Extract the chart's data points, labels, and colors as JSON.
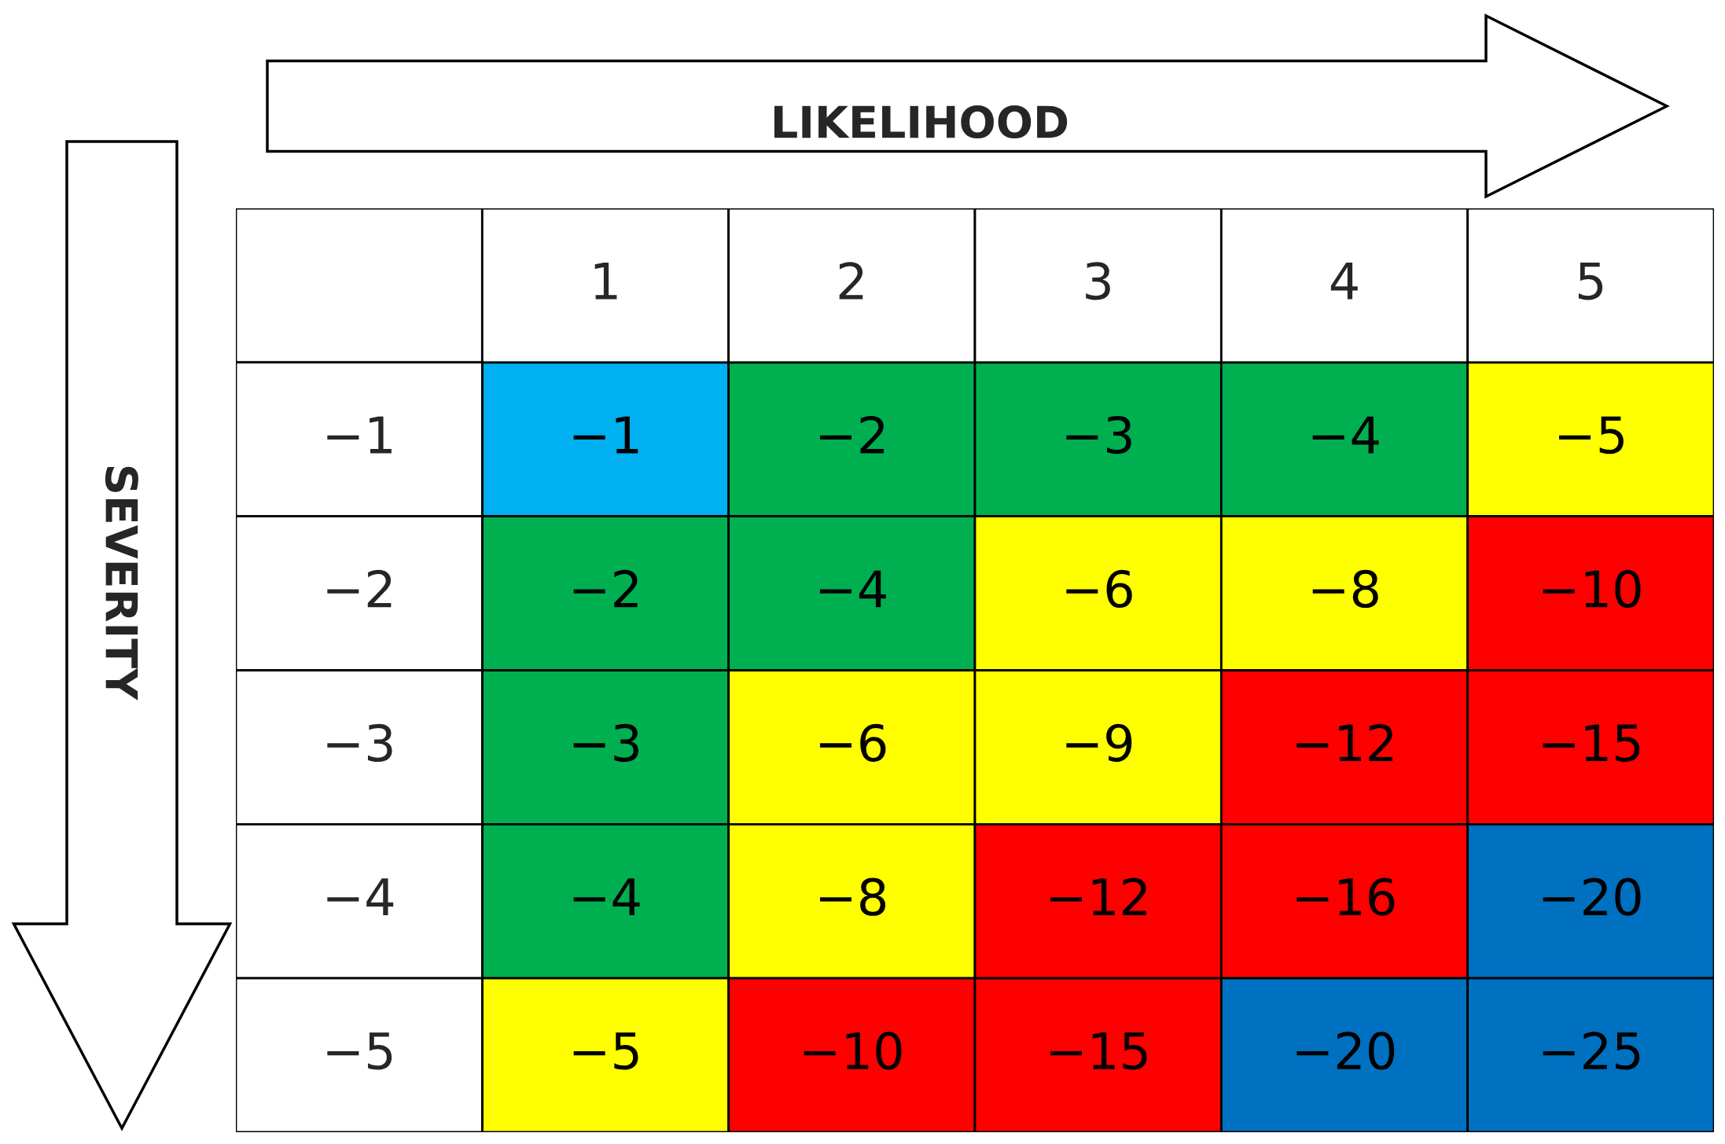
{
  "chart_data": {
    "type": "heatmap",
    "xlabel": "LIKELIHOOD",
    "ylabel": "SEVERITY",
    "categories": [
      "1",
      "2",
      "3",
      "4",
      "5"
    ],
    "y_categories": [
      "−1",
      "−2",
      "−3",
      "−4",
      "−5"
    ],
    "cells": [
      [
        -1,
        -2,
        -3,
        -4,
        -5
      ],
      [
        -2,
        -4,
        -6,
        -8,
        -10
      ],
      [
        -3,
        -6,
        -9,
        -12,
        -15
      ],
      [
        -4,
        -8,
        -12,
        -16,
        -20
      ],
      [
        -5,
        -10,
        -15,
        -20,
        -25
      ]
    ],
    "data_labels": true,
    "colors": [
      [
        "#00b0f0",
        "#00b050",
        "#00b050",
        "#00b050",
        "#ffff00"
      ],
      [
        "#00b050",
        "#00b050",
        "#ffff00",
        "#ffff00",
        "#ff0000"
      ],
      [
        "#00b050",
        "#ffff00",
        "#ffff00",
        "#ff0000",
        "#ff0000"
      ],
      [
        "#00b050",
        "#ffff00",
        "#ff0000",
        "#ff0000",
        "#0070c0"
      ],
      [
        "#ffff00",
        "#ff0000",
        "#ff0000",
        "#0070c0",
        "#0070c0"
      ]
    ]
  }
}
